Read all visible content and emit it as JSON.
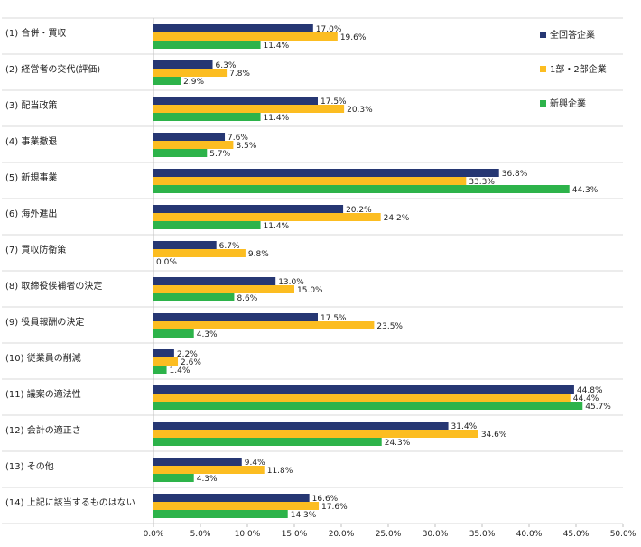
{
  "chart_data": {
    "type": "bar",
    "orientation": "horizontal",
    "title": "",
    "xlabel": "",
    "ylabel": "",
    "xlim": [
      0,
      50
    ],
    "x_ticks": [
      "0.0%",
      "5.0%",
      "10.0%",
      "15.0%",
      "20.0%",
      "25.0%",
      "30.0%",
      "35.0%",
      "40.0%",
      "45.0%",
      "50.0%"
    ],
    "grid": "horizontal separators between categories",
    "legend_position": "top-right",
    "categories": [
      "(1) 合併・買収",
      "(2) 経営者の交代(評価)",
      "(3) 配当政策",
      "(4) 事業撤退",
      "(5) 新規事業",
      "(6) 海外進出",
      "(7) 買収防衛策",
      "(8) 取締役候補者の決定",
      "(9) 役員報酬の決定",
      "(10) 従業員の削減",
      "(11) 議案の適法性",
      "(12) 会計の適正さ",
      "(13) その他",
      "(14) 上記に該当するものはない"
    ],
    "series": [
      {
        "name": "全回答企業",
        "color": "#263773",
        "values": [
          17.0,
          6.3,
          17.5,
          7.6,
          36.8,
          20.2,
          6.7,
          13.0,
          17.5,
          2.2,
          44.8,
          31.4,
          9.4,
          16.6
        ],
        "labels": [
          "17.0%",
          "6.3%",
          "17.5%",
          "7.6%",
          "36.8%",
          "20.2%",
          "6.7%",
          "13.0%",
          "17.5%",
          "2.2%",
          "44.8%",
          "31.4%",
          "9.4%",
          "16.6%"
        ]
      },
      {
        "name": "1部・2部企業",
        "color": "#fcbd21",
        "values": [
          19.6,
          7.8,
          20.3,
          8.5,
          33.3,
          24.2,
          9.8,
          15.0,
          23.5,
          2.6,
          44.4,
          34.6,
          11.8,
          17.6
        ],
        "labels": [
          "19.6%",
          "7.8%",
          "20.3%",
          "8.5%",
          "33.3%",
          "24.2%",
          "9.8%",
          "15.0%",
          "23.5%",
          "2.6%",
          "44.4%",
          "34.6%",
          "11.8%",
          "17.6%"
        ]
      },
      {
        "name": "新興企業",
        "color": "#2db34a",
        "values": [
          11.4,
          2.9,
          11.4,
          5.7,
          44.3,
          11.4,
          0.0,
          8.6,
          4.3,
          1.4,
          45.7,
          24.3,
          4.3,
          14.3
        ],
        "labels": [
          "11.4%",
          "2.9%",
          "11.4%",
          "5.7%",
          "44.3%",
          "11.4%",
          "0.0%",
          "8.6%",
          "4.3%",
          "1.4%",
          "45.7%",
          "24.3%",
          "4.3%",
          "14.3%"
        ]
      }
    ]
  }
}
